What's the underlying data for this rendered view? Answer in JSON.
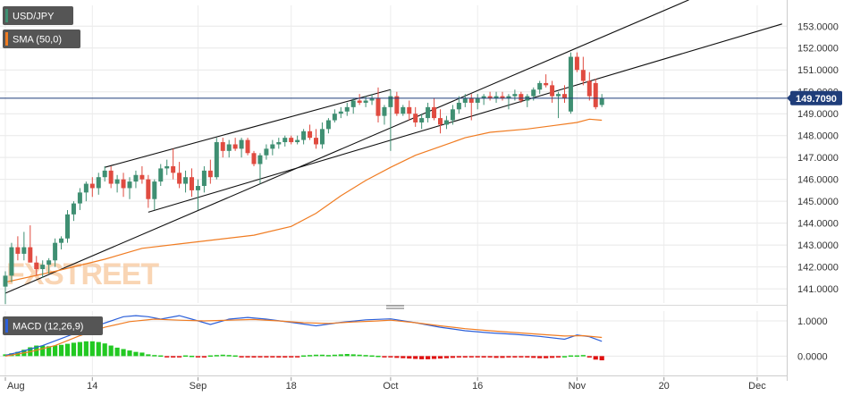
{
  "legend": {
    "pair": "USD/JPY",
    "sma": "SMA (50,0)",
    "macd": "MACD (12,26,9)"
  },
  "watermark": {
    "fx": "FX",
    "street": "STREET"
  },
  "last_price_label": "149.7090",
  "colors": {
    "up": "#3f8f72",
    "down": "#e04b40",
    "sma": "#f07c22",
    "macd_line": "#2b5fd9",
    "signal_line": "#f07c22",
    "hist_pos": "#22c922",
    "hist_neg": "#e01010",
    "price_line": "#1f3d7a",
    "channel": "#111111",
    "watermark": "#f7c79c"
  },
  "chart_data": {
    "type": "candlestick",
    "price_axis": {
      "min": 140.35,
      "max": 153.95,
      "ticks": [
        "141.0000",
        "142.0000",
        "143.0000",
        "144.0000",
        "145.0000",
        "146.0000",
        "147.0000",
        "148.0000",
        "149.0000",
        "150.0000",
        "151.0000",
        "152.0000",
        "153.0000"
      ]
    },
    "x_axis": {
      "labels": [
        "Aug",
        "14",
        "Sep",
        "18",
        "Oct",
        "16",
        "Nov",
        "20",
        "Dec"
      ],
      "label_bars": [
        0,
        14,
        31,
        46,
        62,
        76,
        92,
        106,
        121
      ],
      "total_bars": 125
    },
    "candles": [
      [
        141.1,
        141.8,
        140.3,
        141.6
      ],
      [
        141.6,
        143.1,
        141.3,
        142.9
      ],
      [
        142.9,
        143.4,
        142.3,
        142.6
      ],
      [
        142.6,
        143.6,
        142.3,
        142.9
      ],
      [
        142.9,
        143.9,
        142.2,
        142.2
      ],
      [
        142.2,
        142.5,
        141.6,
        141.9
      ],
      [
        141.9,
        142.3,
        141.5,
        142.1
      ],
      [
        142.1,
        142.4,
        141.7,
        142.3
      ],
      [
        142.3,
        143.3,
        142.0,
        143.1
      ],
      [
        143.1,
        143.4,
        142.8,
        143.3
      ],
      [
        143.3,
        144.6,
        143.1,
        144.4
      ],
      [
        144.4,
        145.0,
        144.1,
        144.9
      ],
      [
        144.9,
        145.6,
        144.6,
        145.4
      ],
      [
        145.4,
        145.9,
        145.0,
        145.8
      ],
      [
        145.8,
        146.1,
        145.2,
        145.6
      ],
      [
        145.6,
        146.3,
        145.3,
        146.1
      ],
      [
        146.1,
        146.6,
        145.9,
        146.4
      ],
      [
        146.4,
        146.6,
        145.6,
        145.8
      ],
      [
        145.8,
        146.2,
        145.4,
        146.0
      ],
      [
        146.0,
        146.3,
        145.2,
        145.6
      ],
      [
        145.6,
        146.1,
        145.1,
        145.9
      ],
      [
        145.9,
        146.4,
        145.6,
        146.2
      ],
      [
        146.2,
        146.6,
        145.8,
        146.0
      ],
      [
        146.0,
        146.2,
        144.7,
        145.1
      ],
      [
        145.1,
        146.0,
        144.6,
        145.9
      ],
      [
        145.9,
        146.7,
        145.7,
        146.5
      ],
      [
        146.5,
        146.9,
        146.2,
        146.6
      ],
      [
        146.6,
        147.4,
        146.0,
        146.3
      ],
      [
        146.3,
        146.8,
        145.6,
        145.8
      ],
      [
        145.8,
        146.4,
        145.4,
        146.1
      ],
      [
        146.1,
        146.5,
        145.2,
        145.5
      ],
      [
        145.5,
        146.0,
        144.6,
        145.7
      ],
      [
        145.7,
        146.6,
        145.4,
        146.4
      ],
      [
        146.4,
        146.9,
        145.8,
        146.1
      ],
      [
        146.1,
        147.9,
        146.0,
        147.7
      ],
      [
        147.7,
        147.9,
        147.0,
        147.3
      ],
      [
        147.3,
        147.8,
        147.0,
        147.6
      ],
      [
        147.6,
        147.9,
        147.3,
        147.4
      ],
      [
        147.4,
        147.9,
        147.0,
        147.8
      ],
      [
        147.8,
        147.9,
        147.1,
        147.2
      ],
      [
        147.2,
        147.3,
        146.6,
        146.7
      ],
      [
        146.7,
        147.2,
        145.8,
        147.1
      ],
      [
        147.1,
        147.6,
        146.9,
        147.4
      ],
      [
        147.4,
        147.8,
        147.1,
        147.6
      ],
      [
        147.6,
        147.9,
        147.4,
        147.7
      ],
      [
        147.7,
        148.0,
        147.5,
        147.9
      ],
      [
        147.9,
        148.0,
        147.6,
        147.7
      ],
      [
        147.7,
        148.0,
        147.6,
        147.8
      ],
      [
        147.8,
        148.3,
        147.6,
        148.2
      ],
      [
        148.2,
        148.5,
        147.8,
        147.9
      ],
      [
        147.9,
        148.3,
        147.4,
        147.6
      ],
      [
        147.6,
        148.6,
        147.4,
        148.3
      ],
      [
        148.3,
        148.8,
        148.1,
        148.7
      ],
      [
        148.7,
        149.2,
        148.6,
        149.0
      ],
      [
        149.0,
        149.3,
        148.8,
        149.1
      ],
      [
        149.1,
        149.5,
        148.9,
        149.3
      ],
      [
        149.3,
        149.7,
        149.0,
        149.6
      ],
      [
        149.6,
        149.9,
        149.4,
        149.5
      ],
      [
        149.5,
        149.8,
        149.3,
        149.6
      ],
      [
        149.6,
        149.9,
        149.4,
        149.7
      ],
      [
        149.7,
        150.2,
        148.6,
        148.9
      ],
      [
        148.9,
        149.4,
        148.5,
        149.3
      ],
      [
        149.3,
        150.1,
        147.3,
        149.8
      ],
      [
        149.8,
        150.0,
        148.9,
        149.0
      ],
      [
        149.0,
        149.4,
        148.9,
        149.3
      ],
      [
        149.3,
        149.6,
        148.7,
        149.0
      ],
      [
        149.0,
        149.3,
        148.4,
        148.6
      ],
      [
        148.6,
        149.0,
        148.3,
        148.8
      ],
      [
        148.8,
        149.5,
        148.6,
        149.3
      ],
      [
        149.3,
        149.7,
        148.7,
        148.8
      ],
      [
        148.8,
        149.2,
        148.1,
        148.5
      ],
      [
        148.5,
        148.9,
        148.3,
        148.7
      ],
      [
        148.7,
        149.4,
        148.5,
        149.2
      ],
      [
        149.2,
        149.8,
        149.0,
        149.5
      ],
      [
        149.5,
        149.9,
        149.3,
        149.7
      ],
      [
        149.7,
        149.9,
        148.7,
        149.5
      ],
      [
        149.5,
        149.9,
        149.2,
        149.7
      ],
      [
        149.7,
        149.9,
        149.4,
        149.8
      ],
      [
        149.8,
        150.0,
        149.6,
        149.7
      ],
      [
        149.7,
        150.0,
        149.5,
        149.8
      ],
      [
        149.8,
        150.0,
        149.6,
        149.7
      ],
      [
        149.7,
        149.9,
        149.2,
        149.8
      ],
      [
        149.8,
        150.1,
        149.6,
        149.9
      ],
      [
        149.9,
        150.0,
        149.5,
        149.6
      ],
      [
        149.6,
        149.9,
        149.3,
        149.8
      ],
      [
        149.8,
        150.2,
        149.6,
        150.1
      ],
      [
        150.1,
        150.5,
        149.9,
        150.4
      ],
      [
        150.4,
        150.8,
        150.2,
        150.3
      ],
      [
        150.3,
        150.5,
        149.5,
        149.8
      ],
      [
        149.8,
        150.0,
        148.8,
        149.9
      ],
      [
        149.9,
        150.3,
        149.5,
        149.7
      ],
      [
        149.1,
        151.8,
        149.0,
        151.6
      ],
      [
        151.6,
        151.8,
        150.9,
        151.0
      ],
      [
        151.0,
        151.6,
        150.3,
        150.5
      ],
      [
        150.5,
        150.9,
        149.6,
        149.8
      ],
      [
        150.4,
        150.6,
        149.2,
        149.3
      ],
      [
        149.4,
        149.9,
        149.3,
        149.7
      ]
    ],
    "sma": [
      [
        0,
        141.3
      ],
      [
        8,
        141.8
      ],
      [
        16,
        142.35
      ],
      [
        22,
        142.85
      ],
      [
        28,
        143.05
      ],
      [
        34,
        143.25
      ],
      [
        40,
        143.45
      ],
      [
        46,
        143.85
      ],
      [
        50,
        144.45
      ],
      [
        54,
        145.25
      ],
      [
        58,
        145.95
      ],
      [
        62,
        146.55
      ],
      [
        66,
        147.1
      ],
      [
        70,
        147.5
      ],
      [
        74,
        147.9
      ],
      [
        78,
        148.15
      ],
      [
        84,
        148.3
      ],
      [
        88,
        148.45
      ],
      [
        92,
        148.6
      ],
      [
        94,
        148.75
      ],
      [
        96,
        148.7
      ]
    ],
    "channel_lines": [
      {
        "from": [
          0,
          140.8
        ],
        "to": [
          110,
          154.2
        ]
      },
      {
        "from": [
          23,
          144.5
        ],
        "to": [
          125,
          153.1
        ]
      },
      {
        "from": [
          16,
          146.55
        ],
        "to": [
          62,
          150.1
        ]
      }
    ],
    "macd": {
      "axis": {
        "min": -0.55,
        "max": 1.28,
        "ticks": [
          "0.0000",
          "1.0000"
        ]
      },
      "macd_line": [
        [
          0,
          0.02
        ],
        [
          3,
          0.15
        ],
        [
          6,
          0.3
        ],
        [
          9,
          0.5
        ],
        [
          12,
          0.7
        ],
        [
          14,
          0.82
        ],
        [
          17,
          1.0
        ],
        [
          19,
          1.12
        ],
        [
          21,
          1.15
        ],
        [
          23,
          1.12
        ],
        [
          25,
          1.05
        ],
        [
          28,
          1.15
        ],
        [
          30,
          1.05
        ],
        [
          33,
          0.9
        ],
        [
          36,
          1.05
        ],
        [
          39,
          1.1
        ],
        [
          42,
          1.05
        ],
        [
          46,
          0.96
        ],
        [
          50,
          0.86
        ],
        [
          54,
          0.96
        ],
        [
          58,
          1.03
        ],
        [
          62,
          1.06
        ],
        [
          66,
          0.95
        ],
        [
          70,
          0.82
        ],
        [
          74,
          0.72
        ],
        [
          78,
          0.66
        ],
        [
          82,
          0.62
        ],
        [
          86,
          0.56
        ],
        [
          90,
          0.48
        ],
        [
          92,
          0.6
        ],
        [
          94,
          0.55
        ],
        [
          96,
          0.42
        ]
      ],
      "signal_line": [
        [
          0,
          0.0
        ],
        [
          4,
          0.12
        ],
        [
          8,
          0.3
        ],
        [
          12,
          0.58
        ],
        [
          16,
          0.82
        ],
        [
          20,
          0.98
        ],
        [
          24,
          1.05
        ],
        [
          28,
          1.02
        ],
        [
          32,
          1.0
        ],
        [
          36,
          1.02
        ],
        [
          40,
          1.04
        ],
        [
          44,
          1.0
        ],
        [
          48,
          0.95
        ],
        [
          52,
          0.93
        ],
        [
          56,
          0.97
        ],
        [
          60,
          1.0
        ],
        [
          62,
          1.02
        ],
        [
          66,
          0.95
        ],
        [
          70,
          0.86
        ],
        [
          74,
          0.78
        ],
        [
          78,
          0.72
        ],
        [
          82,
          0.67
        ],
        [
          86,
          0.62
        ],
        [
          90,
          0.57
        ],
        [
          93,
          0.58
        ],
        [
          96,
          0.53
        ]
      ],
      "histogram": [
        0.05,
        0.08,
        0.12,
        0.18,
        0.25,
        0.3,
        0.3,
        0.28,
        0.3,
        0.32,
        0.35,
        0.38,
        0.4,
        0.42,
        0.42,
        0.4,
        0.36,
        0.3,
        0.24,
        0.2,
        0.16,
        0.12,
        0.1,
        0.05,
        0.03,
        0.02,
        -0.03,
        -0.04,
        -0.03,
        0.02,
        0.01,
        -0.02,
        -0.04,
        0.02,
        0.03,
        0.04,
        0.03,
        0.02,
        -0.02,
        -0.03,
        -0.04,
        -0.03,
        -0.02,
        -0.03,
        -0.04,
        -0.04,
        -0.03,
        -0.02,
        0.02,
        0.03,
        0.04,
        0.04,
        0.03,
        0.04,
        0.05,
        0.06,
        0.05,
        0.04,
        0.03,
        0.02,
        0.01,
        -0.02,
        -0.03,
        -0.05,
        -0.06,
        -0.07,
        -0.08,
        -0.09,
        -0.09,
        -0.08,
        -0.07,
        -0.06,
        -0.05,
        -0.04,
        -0.04,
        -0.03,
        -0.03,
        -0.04,
        -0.04,
        -0.05,
        -0.05,
        -0.04,
        -0.04,
        -0.03,
        -0.04,
        -0.05,
        -0.06,
        -0.06,
        -0.05,
        -0.04,
        0.0,
        0.02,
        0.02,
        0.03,
        -0.04,
        -0.1,
        -0.12
      ]
    }
  }
}
